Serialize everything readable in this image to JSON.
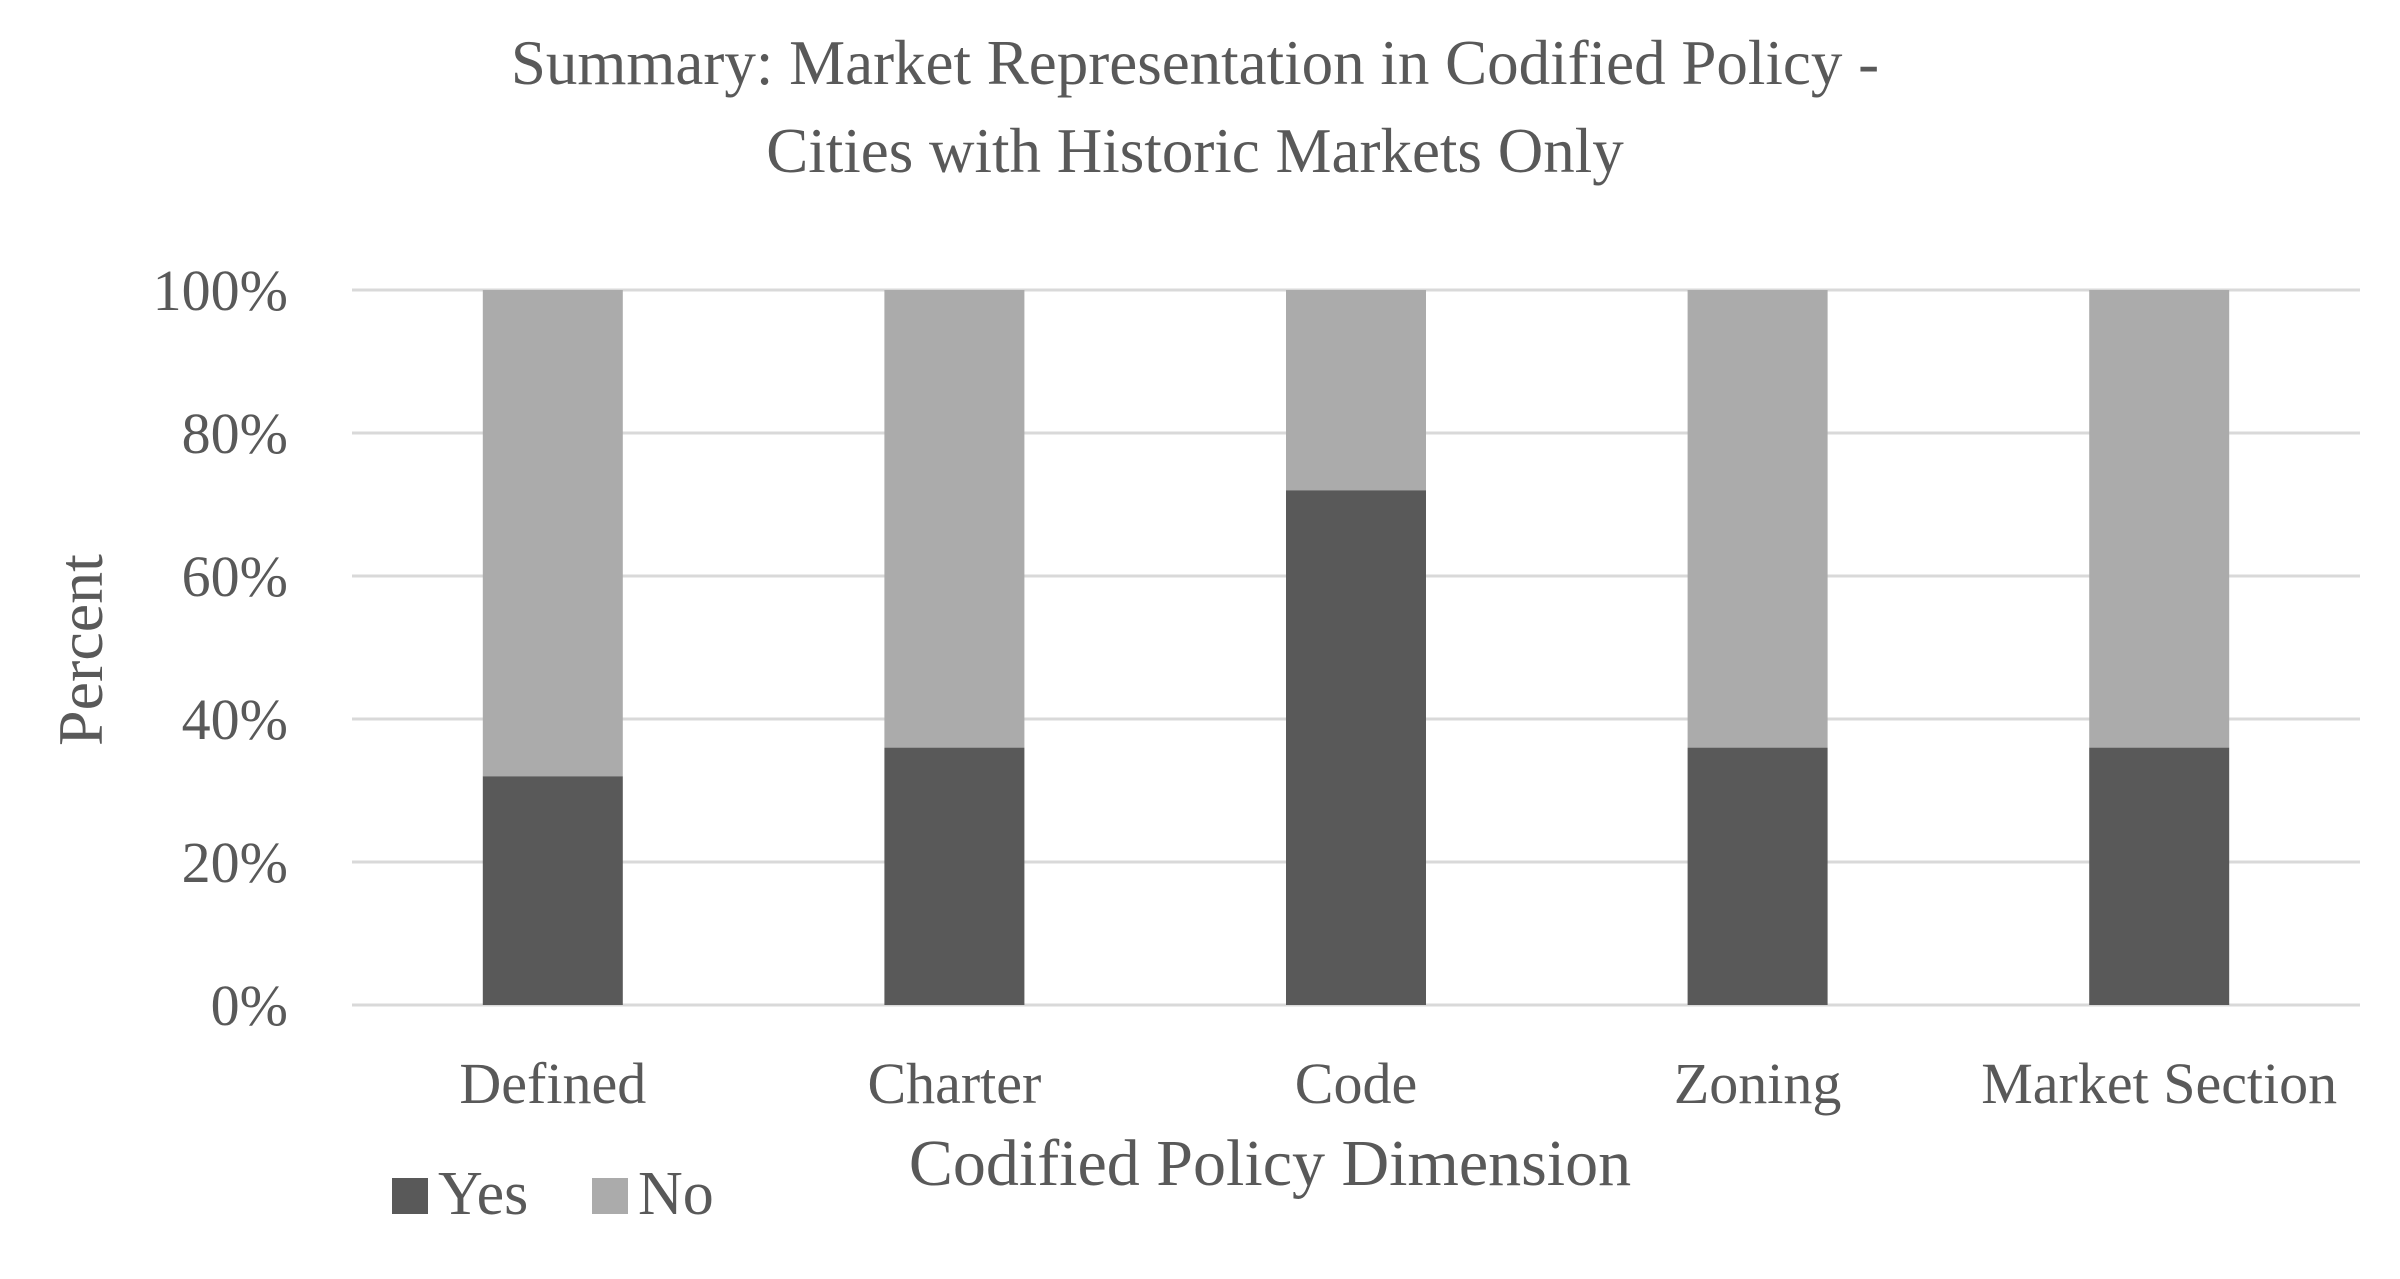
{
  "chart_data": {
    "type": "bar",
    "stacked": true,
    "percent_stacked": true,
    "title_lines": [
      "Summary: Market Representation in Codified Policy -",
      "Cities with Historic Markets Only"
    ],
    "xlabel": "Codified Policy Dimension",
    "ylabel": "Percent",
    "categories": [
      "Defined",
      "Charter",
      "Code",
      "Zoning",
      "Market Section"
    ],
    "series": [
      {
        "name": "Yes",
        "color": "#595959",
        "values": [
          32,
          36,
          72,
          36,
          36
        ]
      },
      {
        "name": "No",
        "color": "#ababab",
        "values": [
          68,
          64,
          28,
          64,
          64
        ]
      }
    ],
    "ylim": [
      0,
      100
    ],
    "yticks": [
      "0%",
      "20%",
      "40%",
      "60%",
      "80%",
      "100%"
    ],
    "ytick_values": [
      0,
      20,
      40,
      60,
      80,
      100
    ],
    "grid": true,
    "grid_color": "#d9d9d9",
    "text_color": "#595959",
    "legend_position": "bottom-left"
  }
}
